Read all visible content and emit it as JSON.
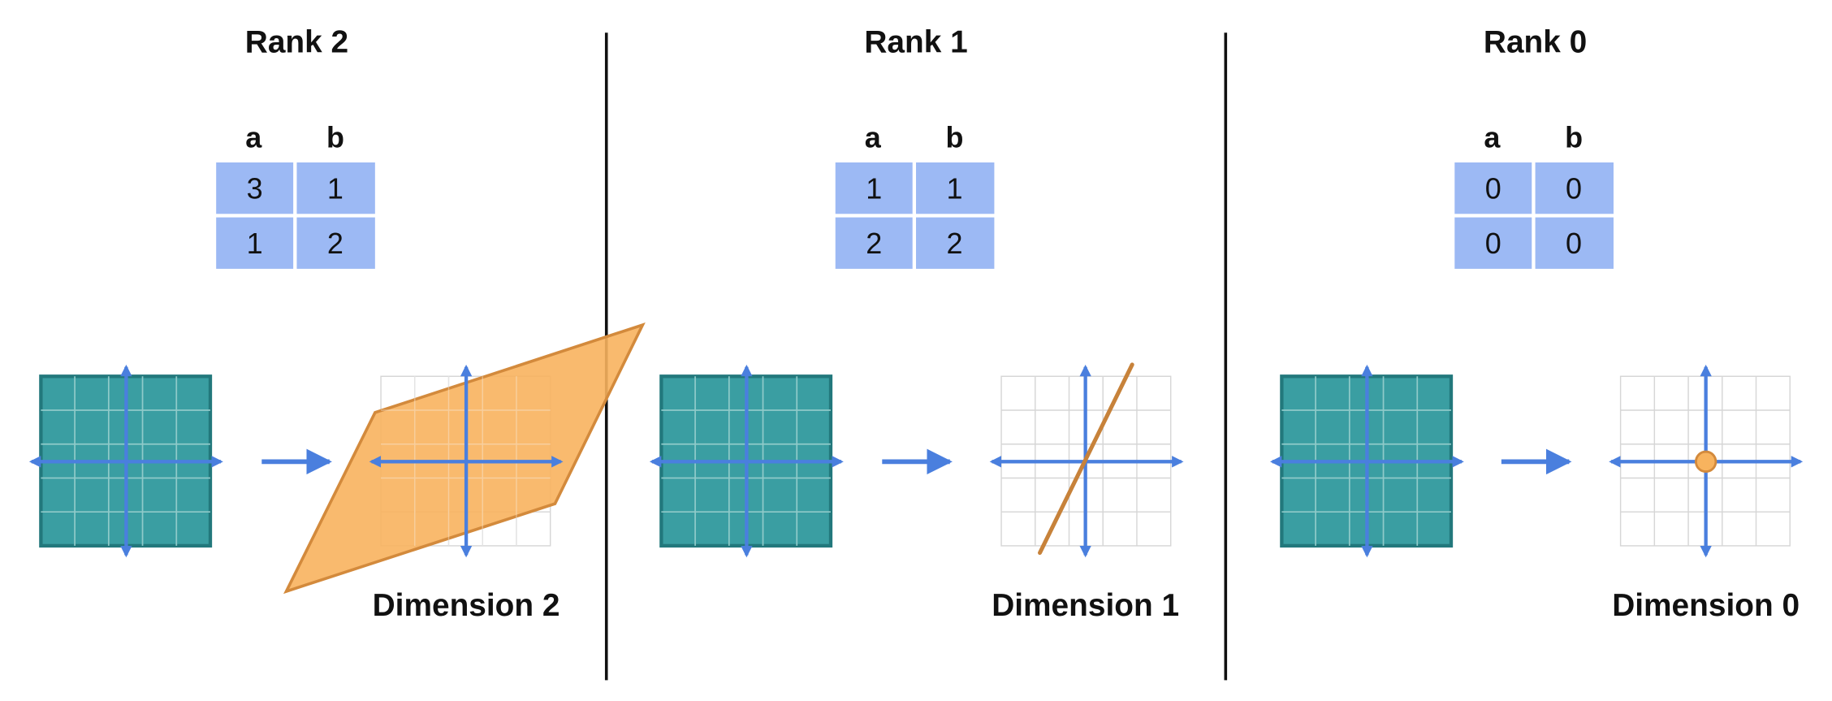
{
  "panels": [
    {
      "rank_label": "Rank 2",
      "matrix": {
        "headers": [
          "a",
          "b"
        ],
        "rows": [
          [
            "3",
            "1"
          ],
          [
            "1",
            "2"
          ]
        ]
      },
      "result": "plane",
      "dimension_label": "Dimension 2"
    },
    {
      "rank_label": "Rank 1",
      "matrix": {
        "headers": [
          "a",
          "b"
        ],
        "rows": [
          [
            "1",
            "1"
          ],
          [
            "2",
            "2"
          ]
        ]
      },
      "result": "line",
      "dimension_label": "Dimension 1"
    },
    {
      "rank_label": "Rank 0",
      "matrix": {
        "headers": [
          "a",
          "b"
        ],
        "rows": [
          [
            "0",
            "0"
          ],
          [
            "0",
            "0"
          ]
        ]
      },
      "result": "point",
      "dimension_label": "Dimension 0"
    }
  ],
  "colors": {
    "square_fill": "#3a9ea2",
    "square_border": "#22787c",
    "axis": "#4a7fde",
    "cell_fill": "#9cb9f4",
    "image_fill": "#f8b35e",
    "image_stroke": "#d38a3c",
    "divider": "#111111",
    "grid": "#d6d6d6"
  },
  "icons": [
    "arrow-right-icon"
  ]
}
